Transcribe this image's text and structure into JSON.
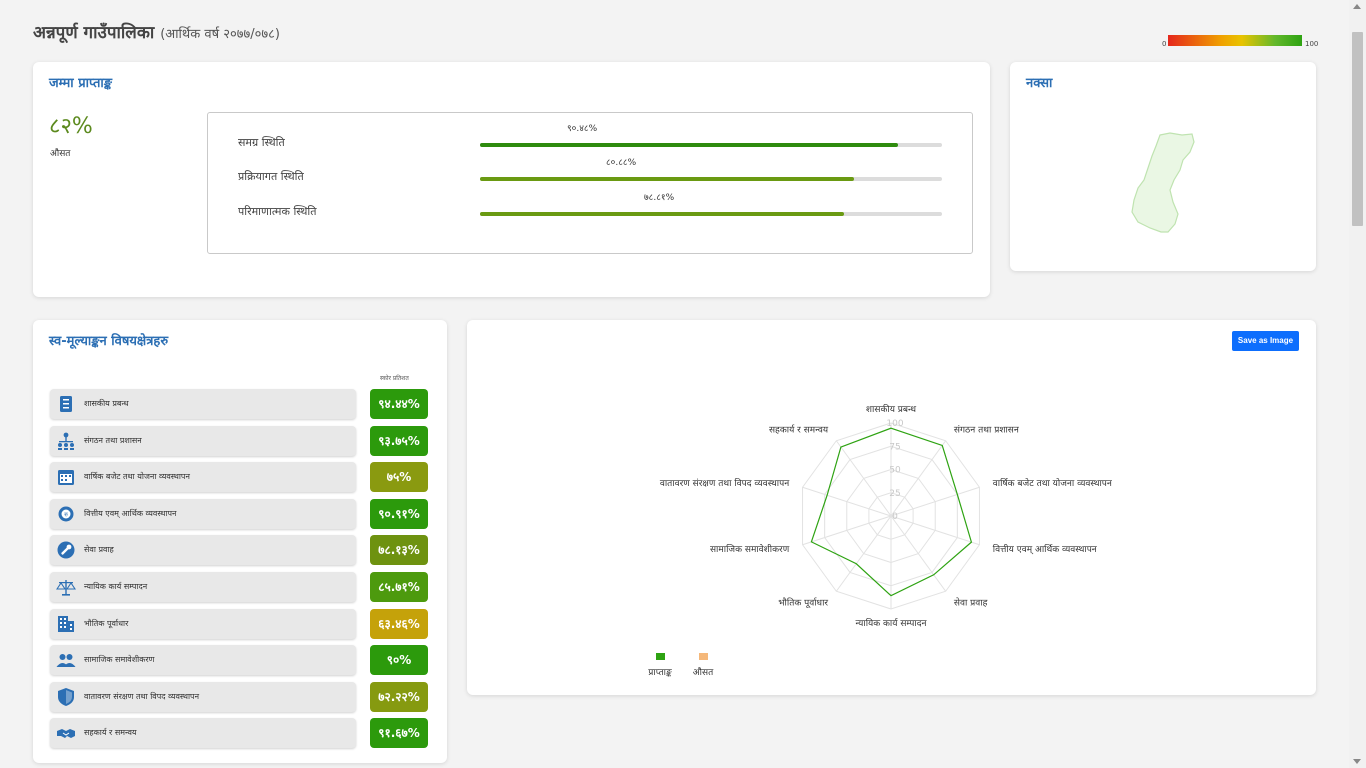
{
  "header": {
    "title": "अन्नपूर्ण गाउँपालिका",
    "subtitle": "(आर्थिक वर्ष २०७७/०७८)"
  },
  "color_scale": {
    "min_label": "0",
    "max_label": "100"
  },
  "score_card": {
    "title": "जम्मा प्राप्ताङ्क",
    "average_value": "८२%",
    "average_label": "औसत",
    "rows": [
      {
        "label": "समग्र स्थिति",
        "percent_text": "९०.४८%",
        "value": 0.9048,
        "color": "#2e8b0e"
      },
      {
        "label": "प्रक्रियागत स्थिति",
        "percent_text": "८०.८८%",
        "value": 0.8088,
        "color": "#6a9a12"
      },
      {
        "label": "परिमाणात्मक स्थिति",
        "percent_text": "७८.८१%",
        "value": 0.7881,
        "color": "#6a9a12"
      }
    ]
  },
  "map_card": {
    "title": "नक्सा"
  },
  "areas_card": {
    "title": "स्व-मूल्याङ्कन विषयक्षेत्रहरु",
    "column_header": "स्कोर प्रतिशत",
    "items": [
      {
        "label": "शासकीय प्रबन्ध",
        "score": "९४.४४%",
        "color": "#2c9a0c",
        "icon": "checklist-icon"
      },
      {
        "label": "संगठन तथा प्रशासन",
        "score": "९३.७५%",
        "color": "#2c9a0c",
        "icon": "org-chart-icon"
      },
      {
        "label": "वार्षिक बजेट तथा योजना व्यवस्थापन",
        "score": "७५%",
        "color": "#8a9a10",
        "icon": "calendar-icon"
      },
      {
        "label": "वित्तीय एवम् आर्थिक व्यवस्थापन",
        "score": "९०.९१%",
        "color": "#2c9a0c",
        "icon": "gear-money-icon"
      },
      {
        "label": "सेवा प्रवाह",
        "score": "७८.१३%",
        "color": "#6e9210",
        "icon": "wrench-icon"
      },
      {
        "label": "न्यायिक कार्य सम्पादन",
        "score": "८५.७१%",
        "color": "#4d9a0e",
        "icon": "scales-icon"
      },
      {
        "label": "भौतिक पूर्वाधार",
        "score": "६३.४६%",
        "color": "#c5a20a",
        "icon": "building-icon"
      },
      {
        "label": "सामाजिक समावेशीकरण",
        "score": "९०%",
        "color": "#2c9a0c",
        "icon": "people-icon"
      },
      {
        "label": "वातावरण संरक्षण तथा विपद व्यवस्थापन",
        "score": "७२.२२%",
        "color": "#869a10",
        "icon": "shield-icon"
      },
      {
        "label": "सहकार्य र समन्वय",
        "score": "९१.६७%",
        "color": "#2c9a0c",
        "icon": "handshake-icon"
      }
    ]
  },
  "radar_card": {
    "save_label": "Save as Image",
    "chart_data": {
      "type": "radar",
      "axes": [
        "शासकीय प्रबन्ध",
        "संगठन तथा प्रशासन",
        "वार्षिक बजेट तथा योजना व्यवस्थापन",
        "वित्तीय एवम् आर्थिक व्यवस्थापन",
        "सेवा प्रवाह",
        "न्यायिक कार्य सम्पादन",
        "भौतिक पूर्वाधार",
        "सामाजिक समावेशीकरण",
        "वातावरण संरक्षण तथा विपद व्यवस्थापन",
        "सहकार्य र समन्वय"
      ],
      "range": [
        0,
        100
      ],
      "ticks": [
        "0",
        "25",
        "50",
        "75",
        "100"
      ],
      "series": [
        {
          "name": "प्राप्ताङ्क",
          "color": "#2ea312",
          "values": [
            94.44,
            93.75,
            75,
            90.91,
            78.13,
            85.71,
            63.46,
            90,
            72.22,
            91.67
          ]
        },
        {
          "name": "औसत",
          "color": "#f5b87a",
          "values": []
        }
      ],
      "legend_position": "bottom-left"
    }
  }
}
